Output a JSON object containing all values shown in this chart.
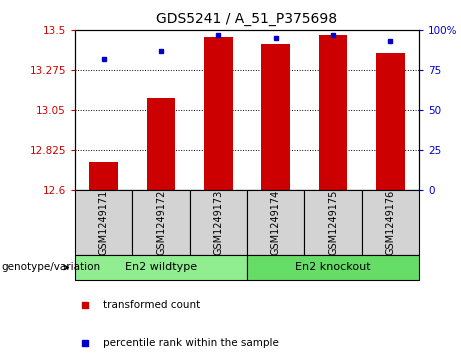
{
  "title": "GDS5241 / A_51_P375698",
  "samples": [
    "GSM1249171",
    "GSM1249172",
    "GSM1249173",
    "GSM1249174",
    "GSM1249175",
    "GSM1249176"
  ],
  "red_values": [
    12.76,
    13.12,
    13.46,
    13.42,
    13.47,
    13.37
  ],
  "blue_values_pct": [
    82,
    87,
    97,
    95,
    97,
    93
  ],
  "ylim_left": [
    12.6,
    13.5
  ],
  "ylim_right": [
    0,
    100
  ],
  "yticks_left": [
    12.6,
    12.825,
    13.05,
    13.275,
    13.5
  ],
  "ytick_labels_left": [
    "12.6",
    "12.825",
    "13.05",
    "13.275",
    "13.5"
  ],
  "yticks_right": [
    0,
    25,
    50,
    75,
    100
  ],
  "ytick_labels_right": [
    "0",
    "25",
    "50",
    "75",
    "100%"
  ],
  "groups": [
    {
      "label": "En2 wildtype",
      "samples": [
        0,
        1,
        2
      ],
      "color": "#90EE90"
    },
    {
      "label": "En2 knockout",
      "samples": [
        3,
        4,
        5
      ],
      "color": "#66DD66"
    }
  ],
  "group_label_prefix": "genotype/variation",
  "legend_red": "transformed count",
  "legend_blue": "percentile rank within the sample",
  "bar_color": "#CC0000",
  "dot_color": "#0000CC",
  "bar_width": 0.5,
  "baseline": 12.6,
  "background_color": "#ffffff",
  "plot_bg_color": "#ffffff",
  "tick_area_bg": "#d3d3d3",
  "grid_color": "#000000",
  "title_fontsize": 10,
  "tick_fontsize": 7.5,
  "label_fontsize": 7,
  "group_fontsize": 8
}
